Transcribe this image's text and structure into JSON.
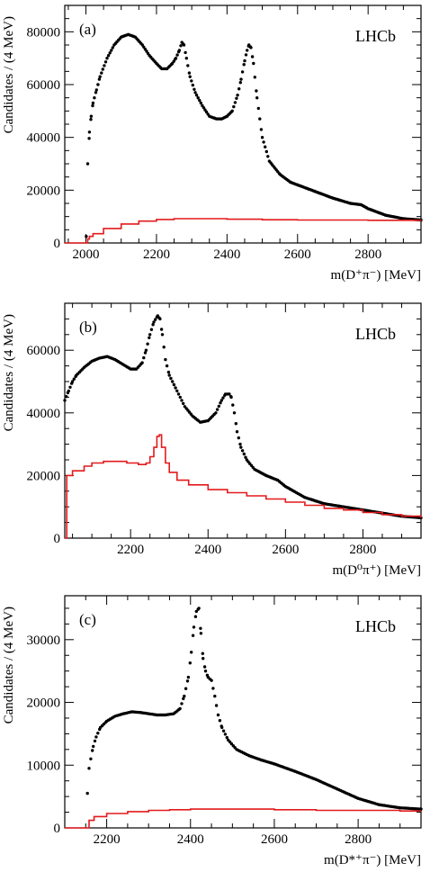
{
  "chart_data": [
    {
      "type": "scatter",
      "panel_label": "(a)",
      "brand": "LHCb",
      "xlabel": "m(D⁺π⁻) [MeV]",
      "ylabel": "Candidates / (4 MeV)",
      "xlim": [
        1940,
        2950
      ],
      "ylim": [
        0,
        90000
      ],
      "xticks": [
        2000,
        2200,
        2400,
        2600,
        2800
      ],
      "yticks": [
        0,
        20000,
        40000,
        60000,
        80000
      ],
      "series": [
        {
          "style": "points",
          "color": "#000000",
          "x": [
            2001,
            2005,
            2010,
            2015,
            2020,
            2030,
            2040,
            2060,
            2080,
            2100,
            2120,
            2140,
            2160,
            2180,
            2200,
            2215,
            2230,
            2245,
            2255,
            2265,
            2272,
            2278,
            2285,
            2295,
            2310,
            2330,
            2350,
            2370,
            2385,
            2400,
            2415,
            2430,
            2440,
            2450,
            2457,
            2462,
            2468,
            2475,
            2485,
            2500,
            2520,
            2550,
            2580,
            2600,
            2650,
            2700,
            2750,
            2780,
            2800,
            2850,
            2900,
            2950
          ],
          "y": [
            2500,
            30000,
            42000,
            48000,
            53000,
            58000,
            63000,
            70000,
            75000,
            78000,
            79000,
            78000,
            75000,
            71000,
            68000,
            66000,
            66000,
            68000,
            70000,
            73000,
            76000,
            75000,
            70000,
            63000,
            57000,
            52000,
            48000,
            47000,
            47000,
            48000,
            50000,
            56000,
            62000,
            69000,
            73000,
            75000,
            74000,
            68000,
            55000,
            40000,
            31000,
            26000,
            23000,
            22000,
            19500,
            17000,
            15000,
            14500,
            13000,
            10500,
            9200,
            8700
          ]
        },
        {
          "style": "step",
          "color": "#e31a1c",
          "x": [
            1940,
            2000,
            2005,
            2010,
            2020,
            2050,
            2100,
            2150,
            2200,
            2250,
            2300,
            2400,
            2500,
            2600,
            2700,
            2800,
            2900,
            2950
          ],
          "y": [
            0,
            0,
            1500,
            2500,
            3500,
            5500,
            7200,
            8300,
            8900,
            9200,
            9200,
            9000,
            8800,
            8700,
            8700,
            8600,
            8600,
            8500
          ]
        }
      ]
    },
    {
      "type": "scatter",
      "panel_label": "(b)",
      "brand": "LHCb",
      "xlabel": "m(D⁰π⁺) [MeV]",
      "ylabel": "Candidates / (4 MeV)",
      "xlim": [
        2030,
        2950
      ],
      "ylim": [
        0,
        75000
      ],
      "xticks": [
        2200,
        2400,
        2600,
        2800
      ],
      "yticks": [
        0,
        20000,
        40000,
        60000
      ],
      "series": [
        {
          "style": "points",
          "color": "#000000",
          "x": [
            2030,
            2040,
            2050,
            2060,
            2080,
            2100,
            2120,
            2140,
            2160,
            2180,
            2200,
            2215,
            2230,
            2240,
            2250,
            2260,
            2270,
            2276,
            2282,
            2290,
            2300,
            2320,
            2340,
            2360,
            2380,
            2400,
            2420,
            2435,
            2445,
            2455,
            2460,
            2468,
            2475,
            2485,
            2500,
            2520,
            2550,
            2580,
            2600,
            2650,
            2700,
            2750,
            2800,
            2850,
            2900,
            2950
          ],
          "y": [
            44000,
            47000,
            50000,
            52000,
            54500,
            56500,
            57500,
            58000,
            57000,
            55500,
            54000,
            54000,
            56000,
            60000,
            65000,
            69000,
            71000,
            70000,
            65000,
            57000,
            52000,
            47000,
            42000,
            39000,
            37000,
            37500,
            40000,
            44000,
            46000,
            46000,
            45000,
            40000,
            34000,
            29000,
            25000,
            22000,
            20000,
            18500,
            16500,
            13000,
            11000,
            10000,
            9000,
            8000,
            7000,
            6500
          ]
        },
        {
          "style": "step",
          "color": "#e31a1c",
          "x": [
            2030,
            2035,
            2050,
            2080,
            2100,
            2130,
            2160,
            2190,
            2220,
            2240,
            2250,
            2260,
            2268,
            2274,
            2280,
            2290,
            2300,
            2320,
            2350,
            2400,
            2450,
            2500,
            2550,
            2600,
            2650,
            2700,
            2750,
            2800,
            2850,
            2900,
            2950
          ],
          "y": [
            0,
            20000,
            21500,
            23000,
            24000,
            24500,
            24500,
            24000,
            23500,
            24000,
            26000,
            29000,
            32500,
            33000,
            29000,
            24000,
            21000,
            18500,
            17000,
            15500,
            14500,
            13500,
            12500,
            11500,
            10500,
            9500,
            9000,
            8200,
            7500,
            7000,
            6500
          ]
        }
      ]
    },
    {
      "type": "scatter",
      "panel_label": "(c)",
      "brand": "LHCb",
      "xlabel": "m(D*⁺π⁻) [MeV]",
      "ylabel": "Candidates / (4 MeV)",
      "xlim": [
        2100,
        2950
      ],
      "ylim": [
        0,
        37000
      ],
      "xticks": [
        2200,
        2400,
        2600,
        2800
      ],
      "yticks": [
        0,
        10000,
        20000,
        30000
      ],
      "series": [
        {
          "style": "points",
          "color": "#000000",
          "x": [
            2154,
            2158,
            2162,
            2168,
            2175,
            2185,
            2200,
            2220,
            2240,
            2260,
            2280,
            2300,
            2320,
            2340,
            2360,
            2375,
            2385,
            2395,
            2402,
            2408,
            2414,
            2420,
            2425,
            2430,
            2436,
            2442,
            2450,
            2458,
            2466,
            2475,
            2490,
            2510,
            2540,
            2570,
            2600,
            2650,
            2700,
            2750,
            2800,
            2850,
            2900,
            2950
          ],
          "y": [
            5500,
            9500,
            11000,
            13000,
            14500,
            16000,
            17000,
            17800,
            18200,
            18500,
            18400,
            18200,
            18000,
            18000,
            18200,
            19000,
            21000,
            24000,
            28000,
            32000,
            34500,
            35000,
            31000,
            27000,
            25000,
            24000,
            23500,
            21000,
            18000,
            16000,
            14000,
            12500,
            11500,
            10800,
            10200,
            9000,
            7700,
            6200,
            4700,
            3700,
            3200,
            3000
          ]
        },
        {
          "style": "step",
          "color": "#e31a1c",
          "x": [
            2100,
            2154,
            2158,
            2170,
            2200,
            2250,
            2300,
            2350,
            2400,
            2500,
            2600,
            2700,
            2800,
            2900,
            2950
          ],
          "y": [
            0,
            0,
            1200,
            1800,
            2300,
            2600,
            2800,
            2900,
            3000,
            3000,
            2900,
            2800,
            2800,
            2700,
            2700
          ]
        }
      ]
    }
  ]
}
